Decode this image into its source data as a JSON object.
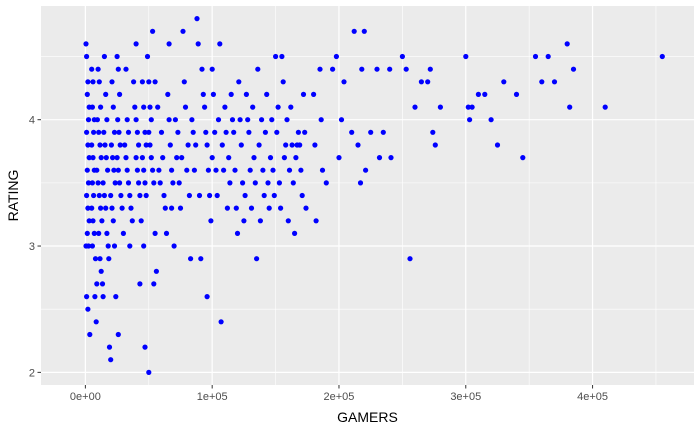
{
  "chart_data": {
    "type": "scatter",
    "title": "",
    "xlabel": "GAMERS",
    "ylabel": "RATING",
    "xlim": [
      -35000,
      480000
    ],
    "ylim": [
      1.9,
      4.9
    ],
    "x_ticks": [
      0,
      100000,
      200000,
      300000,
      400000
    ],
    "x_tick_labels": [
      "0e+00",
      "1e+05",
      "2e+05",
      "3e+05",
      "4e+05"
    ],
    "y_ticks": [
      2,
      3,
      4
    ],
    "y_tick_labels": [
      "2",
      "3",
      "4"
    ],
    "grid": true,
    "legend": "none",
    "colors": {
      "point": "#0000ff",
      "panel": "#ebebeb",
      "grid": "#ffffff"
    },
    "points": [
      [
        500,
        4.6
      ],
      [
        1000,
        4.5
      ],
      [
        2000,
        4.3
      ],
      [
        1500,
        4.2
      ],
      [
        3000,
        4.1
      ],
      [
        2500,
        4.0
      ],
      [
        1000,
        3.9
      ],
      [
        2000,
        3.8
      ],
      [
        3000,
        3.7
      ],
      [
        1500,
        3.6
      ],
      [
        2500,
        3.5
      ],
      [
        1000,
        3.4
      ],
      [
        2000,
        3.3
      ],
      [
        3000,
        3.2
      ],
      [
        1500,
        3.1
      ],
      [
        500,
        3.0
      ],
      [
        2500,
        3.0
      ],
      [
        1000,
        2.6
      ],
      [
        2000,
        2.5
      ],
      [
        3500,
        2.3
      ],
      [
        5000,
        4.4
      ],
      [
        6000,
        4.3
      ],
      [
        5500,
        4.1
      ],
      [
        7000,
        4.0
      ],
      [
        6500,
        3.9
      ],
      [
        5000,
        3.8
      ],
      [
        6000,
        3.7
      ],
      [
        7000,
        3.6
      ],
      [
        5500,
        3.5
      ],
      [
        6500,
        3.4
      ],
      [
        5000,
        3.3
      ],
      [
        6000,
        3.2
      ],
      [
        7000,
        3.1
      ],
      [
        5500,
        3.0
      ],
      [
        8000,
        2.9
      ],
      [
        9000,
        2.7
      ],
      [
        7500,
        2.6
      ],
      [
        8500,
        2.4
      ],
      [
        10000,
        4.4
      ],
      [
        11000,
        4.3
      ],
      [
        12000,
        4.1
      ],
      [
        9500,
        4.0
      ],
      [
        10500,
        3.9
      ],
      [
        11500,
        3.8
      ],
      [
        12500,
        3.7
      ],
      [
        9000,
        3.6
      ],
      [
        10000,
        3.5
      ],
      [
        11000,
        3.4
      ],
      [
        12000,
        3.3
      ],
      [
        13000,
        3.2
      ],
      [
        10500,
        3.1
      ],
      [
        11500,
        2.9
      ],
      [
        12500,
        2.8
      ],
      [
        13500,
        2.7
      ],
      [
        14000,
        2.6
      ],
      [
        15000,
        4.5
      ],
      [
        16000,
        4.2
      ],
      [
        17000,
        4.0
      ],
      [
        14500,
        3.9
      ],
      [
        15500,
        3.8
      ],
      [
        16500,
        3.7
      ],
      [
        17500,
        3.6
      ],
      [
        14000,
        3.5
      ],
      [
        15000,
        3.4
      ],
      [
        16000,
        3.3
      ],
      [
        17000,
        3.1
      ],
      [
        18000,
        3.0
      ],
      [
        18500,
        2.9
      ],
      [
        19000,
        2.2
      ],
      [
        20000,
        2.1
      ],
      [
        21000,
        4.3
      ],
      [
        22000,
        4.1
      ],
      [
        23000,
        3.9
      ],
      [
        20500,
        3.8
      ],
      [
        21500,
        3.7
      ],
      [
        22500,
        3.6
      ],
      [
        23500,
        3.5
      ],
      [
        20000,
        3.4
      ],
      [
        21000,
        3.3
      ],
      [
        22000,
        3.2
      ],
      [
        23000,
        3.0
      ],
      [
        24000,
        2.6
      ],
      [
        25000,
        4.5
      ],
      [
        26000,
        4.4
      ],
      [
        27000,
        4.2
      ],
      [
        25500,
        4.0
      ],
      [
        26500,
        3.9
      ],
      [
        27500,
        3.8
      ],
      [
        25000,
        3.7
      ],
      [
        26000,
        3.6
      ],
      [
        27000,
        3.5
      ],
      [
        28000,
        3.4
      ],
      [
        29000,
        3.3
      ],
      [
        30000,
        3.1
      ],
      [
        26000,
        2.3
      ],
      [
        32000,
        4.4
      ],
      [
        33000,
        4.0
      ],
      [
        34000,
        3.9
      ],
      [
        31000,
        3.8
      ],
      [
        32000,
        3.7
      ],
      [
        33000,
        3.6
      ],
      [
        34000,
        3.5
      ],
      [
        35000,
        3.4
      ],
      [
        36000,
        3.3
      ],
      [
        37000,
        3.2
      ],
      [
        35000,
        3.0
      ],
      [
        38000,
        4.3
      ],
      [
        39000,
        4.1
      ],
      [
        40000,
        4.0
      ],
      [
        41000,
        3.9
      ],
      [
        42000,
        3.8
      ],
      [
        40000,
        3.7
      ],
      [
        41000,
        3.6
      ],
      [
        42000,
        3.5
      ],
      [
        43000,
        3.4
      ],
      [
        44000,
        3.2
      ],
      [
        40000,
        4.6
      ],
      [
        43000,
        2.7
      ],
      [
        45000,
        4.3
      ],
      [
        46000,
        4.1
      ],
      [
        47000,
        3.9
      ],
      [
        48000,
        3.8
      ],
      [
        45000,
        3.7
      ],
      [
        46000,
        3.6
      ],
      [
        47000,
        3.5
      ],
      [
        48000,
        3.4
      ],
      [
        46000,
        3.0
      ],
      [
        47000,
        2.2
      ],
      [
        49000,
        4.5
      ],
      [
        50000,
        4.3
      ],
      [
        51000,
        4.1
      ],
      [
        52000,
        4.0
      ],
      [
        50000,
        3.9
      ],
      [
        51000,
        3.8
      ],
      [
        52000,
        3.7
      ],
      [
        53000,
        3.6
      ],
      [
        54000,
        3.5
      ],
      [
        55000,
        3.1
      ],
      [
        53000,
        4.7
      ],
      [
        55000,
        4.3
      ],
      [
        57000,
        4.1
      ],
      [
        56000,
        2.8
      ],
      [
        50000,
        2.0
      ],
      [
        54000,
        2.7
      ],
      [
        58000,
        3.6
      ],
      [
        59000,
        3.5
      ],
      [
        60000,
        3.9
      ],
      [
        61000,
        3.7
      ],
      [
        62000,
        3.4
      ],
      [
        63000,
        3.3
      ],
      [
        64000,
        3.1
      ],
      [
        65000,
        4.2
      ],
      [
        66000,
        4.0
      ],
      [
        67000,
        3.8
      ],
      [
        68000,
        3.6
      ],
      [
        69000,
        3.5
      ],
      [
        66000,
        4.6
      ],
      [
        68000,
        3.3
      ],
      [
        70000,
        3.0
      ],
      [
        71000,
        4.0
      ],
      [
        72000,
        3.7
      ],
      [
        73000,
        3.9
      ],
      [
        74000,
        3.5
      ],
      [
        75000,
        3.3
      ],
      [
        76000,
        3.7
      ],
      [
        77000,
        4.7
      ],
      [
        78000,
        4.3
      ],
      [
        79000,
        4.1
      ],
      [
        80000,
        3.6
      ],
      [
        81000,
        3.8
      ],
      [
        82000,
        3.4
      ],
      [
        83000,
        2.9
      ],
      [
        84000,
        4.0
      ],
      [
        85000,
        3.9
      ],
      [
        86000,
        3.6
      ],
      [
        87000,
        3.8
      ],
      [
        88000,
        4.8
      ],
      [
        89000,
        4.6
      ],
      [
        90000,
        3.4
      ],
      [
        91000,
        2.9
      ],
      [
        92000,
        4.4
      ],
      [
        93000,
        4.2
      ],
      [
        94000,
        4.1
      ],
      [
        95000,
        3.9
      ],
      [
        96000,
        3.8
      ],
      [
        97000,
        3.6
      ],
      [
        98000,
        3.4
      ],
      [
        99000,
        3.2
      ],
      [
        100000,
        4.4
      ],
      [
        101000,
        4.2
      ],
      [
        102000,
        3.9
      ],
      [
        100000,
        3.7
      ],
      [
        103000,
        3.6
      ],
      [
        104000,
        3.4
      ],
      [
        96000,
        2.6
      ],
      [
        105000,
        4.0
      ],
      [
        106000,
        4.6
      ],
      [
        107000,
        2.4
      ],
      [
        108000,
        3.8
      ],
      [
        109000,
        3.6
      ],
      [
        110000,
        4.1
      ],
      [
        111000,
        3.9
      ],
      [
        112000,
        3.3
      ],
      [
        113000,
        3.7
      ],
      [
        114000,
        3.5
      ],
      [
        115000,
        4.2
      ],
      [
        116000,
        4.0
      ],
      [
        117000,
        3.9
      ],
      [
        118000,
        3.6
      ],
      [
        119000,
        3.3
      ],
      [
        120000,
        3.1
      ],
      [
        121000,
        4.3
      ],
      [
        122000,
        4.0
      ],
      [
        123000,
        3.8
      ],
      [
        124000,
        3.5
      ],
      [
        125000,
        3.2
      ],
      [
        126000,
        3.4
      ],
      [
        127000,
        4.2
      ],
      [
        128000,
        4.0
      ],
      [
        129000,
        3.9
      ],
      [
        130000,
        3.6
      ],
      [
        131000,
        3.3
      ],
      [
        132000,
        4.1
      ],
      [
        133000,
        3.7
      ],
      [
        134000,
        3.5
      ],
      [
        135000,
        2.9
      ],
      [
        136000,
        4.4
      ],
      [
        137000,
        3.8
      ],
      [
        138000,
        3.2
      ],
      [
        139000,
        4.0
      ],
      [
        140000,
        3.6
      ],
      [
        141000,
        3.4
      ],
      [
        142000,
        3.9
      ],
      [
        143000,
        4.2
      ],
      [
        144000,
        3.5
      ],
      [
        145000,
        3.3
      ],
      [
        146000,
        3.7
      ],
      [
        147000,
        4.0
      ],
      [
        148000,
        3.6
      ],
      [
        149000,
        3.4
      ],
      [
        150000,
        4.5
      ],
      [
        151000,
        3.9
      ],
      [
        152000,
        4.1
      ],
      [
        153000,
        3.5
      ],
      [
        154000,
        3.3
      ],
      [
        155000,
        4.5
      ],
      [
        156000,
        4.3
      ],
      [
        157000,
        3.7
      ],
      [
        158000,
        3.8
      ],
      [
        159000,
        4.0
      ],
      [
        160000,
        3.2
      ],
      [
        161000,
        3.6
      ],
      [
        162000,
        4.1
      ],
      [
        163000,
        3.8
      ],
      [
        164000,
        3.5
      ],
      [
        165000,
        3.1
      ],
      [
        166000,
        3.7
      ],
      [
        167000,
        3.8
      ],
      [
        168000,
        3.9
      ],
      [
        169000,
        3.8
      ],
      [
        170000,
        3.6
      ],
      [
        171000,
        3.4
      ],
      [
        172000,
        4.2
      ],
      [
        173000,
        3.9
      ],
      [
        174000,
        3.3
      ],
      [
        180000,
        4.2
      ],
      [
        181000,
        3.8
      ],
      [
        182000,
        3.2
      ],
      [
        185000,
        4.4
      ],
      [
        186000,
        4.0
      ],
      [
        187000,
        3.6
      ],
      [
        190000,
        3.5
      ],
      [
        195000,
        4.4
      ],
      [
        198000,
        4.5
      ],
      [
        200000,
        3.7
      ],
      [
        202000,
        4.0
      ],
      [
        204000,
        4.3
      ],
      [
        210000,
        3.9
      ],
      [
        212000,
        4.7
      ],
      [
        215000,
        3.8
      ],
      [
        217000,
        3.5
      ],
      [
        218000,
        4.4
      ],
      [
        220000,
        4.7
      ],
      [
        221000,
        3.6
      ],
      [
        225000,
        3.9
      ],
      [
        230000,
        4.4
      ],
      [
        232000,
        3.7
      ],
      [
        235000,
        3.9
      ],
      [
        240000,
        4.4
      ],
      [
        241000,
        3.7
      ],
      [
        250000,
        4.5
      ],
      [
        253000,
        4.4
      ],
      [
        256000,
        2.9
      ],
      [
        260000,
        4.1
      ],
      [
        265000,
        4.3
      ],
      [
        270000,
        4.3
      ],
      [
        272000,
        4.4
      ],
      [
        274000,
        3.9
      ],
      [
        276000,
        3.8
      ],
      [
        280000,
        4.1
      ],
      [
        300000,
        4.5
      ],
      [
        302000,
        4.1
      ],
      [
        303000,
        4.0
      ],
      [
        305000,
        4.1
      ],
      [
        310000,
        4.2
      ],
      [
        315000,
        4.2
      ],
      [
        320000,
        4.0
      ],
      [
        325000,
        3.8
      ],
      [
        330000,
        4.3
      ],
      [
        340000,
        4.2
      ],
      [
        345000,
        3.7
      ],
      [
        355000,
        4.5
      ],
      [
        360000,
        4.3
      ],
      [
        365000,
        4.5
      ],
      [
        370000,
        4.3
      ],
      [
        380000,
        4.6
      ],
      [
        382000,
        4.1
      ],
      [
        385000,
        4.4
      ],
      [
        410000,
        4.1
      ],
      [
        455000,
        4.5
      ]
    ]
  }
}
